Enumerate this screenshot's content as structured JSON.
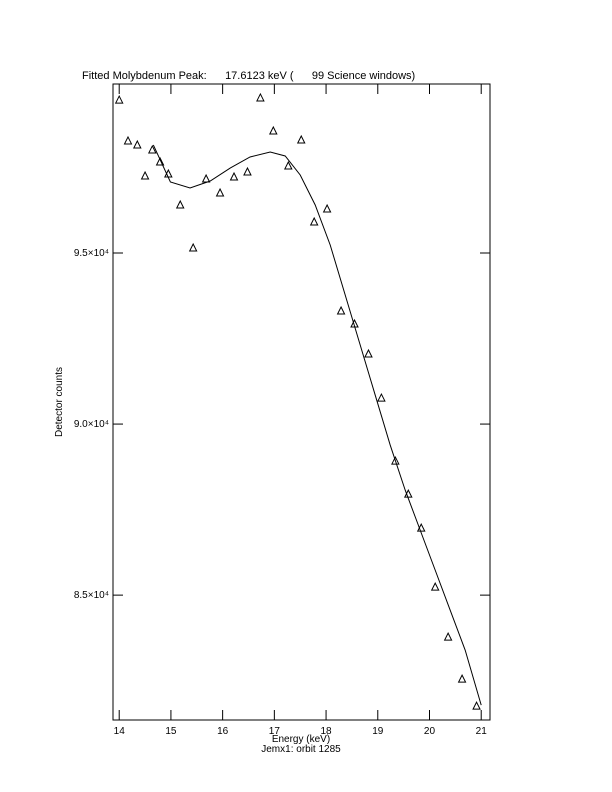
{
  "chart_data": {
    "type": "scatter",
    "title": "Fitted Molybdenum Peak:      17.6123 keV (      99 Science windows)",
    "x_label": "Energy (keV)",
    "subtitle": "Jemx1: orbit 1285",
    "y_label": "Detector counts",
    "xlim": [
      13.88,
      21.17
    ],
    "ylim": [
      81350,
      99940
    ],
    "xticks": [
      14,
      15,
      16,
      17,
      18,
      19,
      20,
      21
    ],
    "yticks": [
      {
        "value": 85000,
        "label": "8.5×10⁴"
      },
      {
        "value": 90000,
        "label": "9.0×10⁴"
      },
      {
        "value": 95000,
        "label": "9.5×10⁴"
      }
    ],
    "series": [
      {
        "type": "scatter",
        "color": "#000000",
        "x": [
          14.0,
          14.17,
          14.35,
          14.5,
          14.64,
          14.79,
          14.95,
          15.18,
          15.43,
          15.68,
          15.95,
          16.22,
          16.48,
          16.73,
          16.98,
          17.27,
          17.52,
          17.77,
          18.02,
          18.29,
          18.55,
          18.82,
          19.07,
          19.34,
          19.59,
          19.84,
          20.11,
          20.36,
          20.63,
          20.91
        ],
        "values": [
          99470,
          98275,
          98158,
          97251,
          98012,
          97661,
          97310,
          96404,
          95146,
          97164,
          96754,
          97222,
          97368,
          99532,
          98567,
          97544,
          98304,
          95906,
          96287,
          93304,
          92924,
          92047,
          90760,
          88918,
          87953,
          86959,
          85234,
          83772,
          82544,
          81754
        ]
      },
      {
        "type": "line",
        "color": "#000000",
        "x": [
          14.66,
          14.99,
          15.37,
          15.76,
          16.15,
          16.53,
          16.92,
          17.21,
          17.5,
          17.79,
          18.08,
          18.37,
          18.66,
          18.95,
          19.24,
          19.53,
          19.82,
          20.11,
          20.4,
          20.69,
          21.0
        ],
        "values": [
          98158,
          97076,
          96901,
          97105,
          97485,
          97807,
          97953,
          97836,
          97281,
          96404,
          95234,
          93772,
          92310,
          90848,
          89386,
          88070,
          86900,
          85731,
          84561,
          83392,
          81784
        ]
      }
    ]
  }
}
